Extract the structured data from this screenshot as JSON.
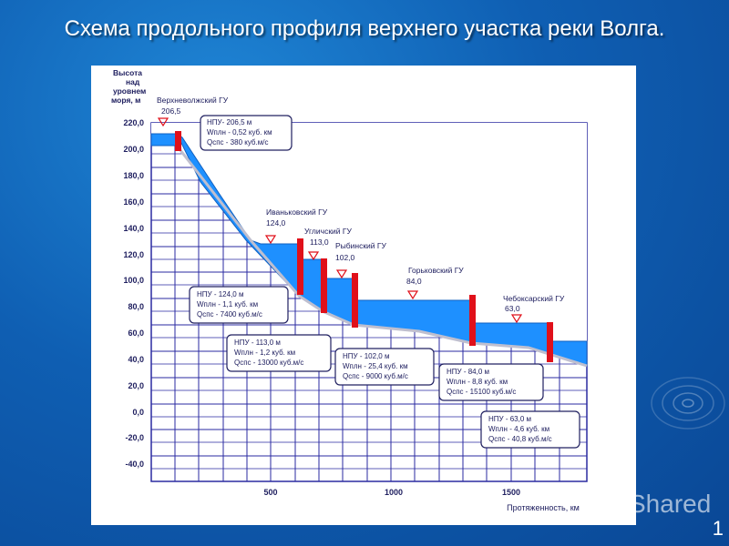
{
  "title": "Схема продольного профиля верхнего участка реки Волга.",
  "page_number": "1",
  "watermark": "Shared",
  "colors": {
    "background": "#0f5fb3",
    "grid": "#2a2aa0",
    "water": "#1e90ff",
    "dam": "#e0101a",
    "bed": "#bfbfcf"
  },
  "y_axis": {
    "label": [
      "Высота",
      "над",
      "уровнем",
      "моря, м"
    ],
    "ticks": [
      "220,0",
      "200,0",
      "180,0",
      "160,0",
      "140,0",
      "120,0",
      "100,0",
      "80,0",
      "60,0",
      "40,0",
      "20,0",
      "0,0",
      "-20,0",
      "-40,0"
    ]
  },
  "x_axis": {
    "ticks": [
      "500",
      "1000",
      "1500"
    ],
    "label": "Протяженность, км"
  },
  "stations": [
    {
      "name": "Верхневолжский ГУ",
      "level": "206,5"
    },
    {
      "name": "Иваньковский ГУ",
      "level": "124,0"
    },
    {
      "name": "Угличский ГУ",
      "level": "113,0"
    },
    {
      "name": "Рыбинский ГУ",
      "level": "102,0"
    },
    {
      "name": "Горьковский ГУ",
      "level": "84,0"
    },
    {
      "name": "Чебоксарский ГУ",
      "level": "63,0"
    }
  ],
  "info_boxes": [
    {
      "npu": "НПУ- 206,5 м",
      "w": "Wплн - 0,52 куб. км",
      "q": "Qспс - 380 куб.м/с"
    },
    {
      "npu": "НПУ - 124,0 м",
      "w": "Wплн - 1,1 куб. км",
      "q": "Qспс - 7400 куб.м/с"
    },
    {
      "npu": "НПУ - 113,0 м",
      "w": "Wплн - 1,2 куб. км",
      "q": "Qспс - 13000 куб.м/с"
    },
    {
      "npu": "НПУ - 102,0 м",
      "w": "Wплн - 25,4 куб. км",
      "q": "Qспс - 9000 куб.м/с"
    },
    {
      "npu": "НПУ - 84,0 м",
      "w": "Wплн - 8,8 куб. км",
      "q": "Qспс - 15100 куб.м/с"
    },
    {
      "npu": "НПУ - 63,0 м",
      "w": "Wплн - 4,6 куб. км",
      "q": "Qспс - 40,8 куб.м/с"
    }
  ]
}
